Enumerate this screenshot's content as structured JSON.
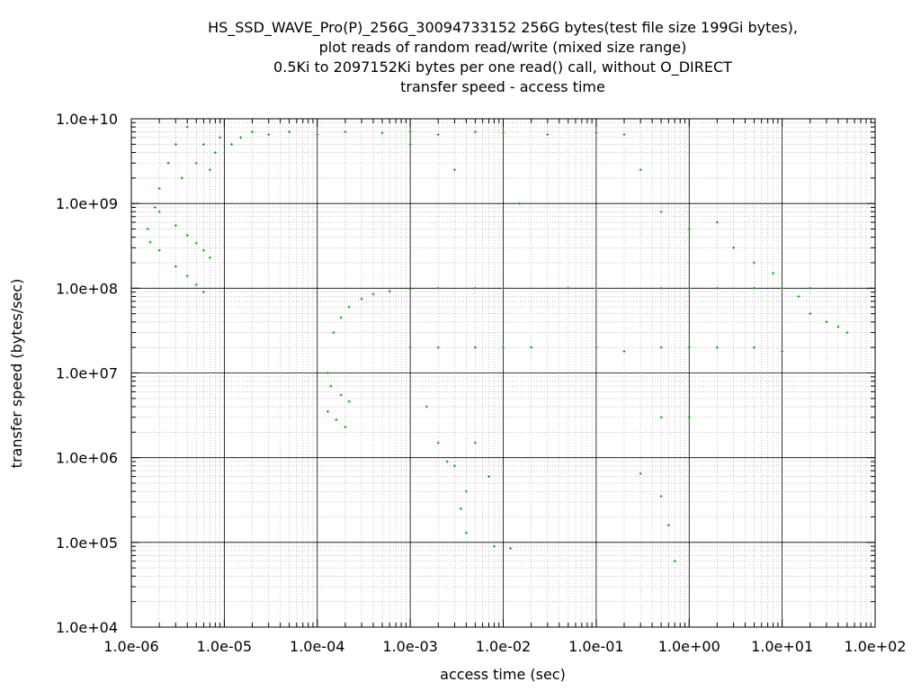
{
  "chart_data": {
    "type": "scatter",
    "title_lines": [
      "HS_SSD_WAVE_Pro(P)_256G_30094733152 256G bytes(test file size 199Gi bytes),",
      "plot reads of random read/write (mixed size range)",
      "0.5Ki to 2097152Ki bytes per one read() call, without O_DIRECT",
      "transfer speed - access time"
    ],
    "xlabel": "access time (sec)",
    "ylabel": "transfer speed (bytes/sec)",
    "x_scale": "log",
    "y_scale": "log",
    "xlim": [
      1e-06,
      100
    ],
    "ylim": [
      10000.0,
      10000000000.0
    ],
    "x_ticks": [
      "1.0e-06",
      "1.0e-05",
      "1.0e-04",
      "1.0e-03",
      "1.0e-02",
      "1.0e-01",
      "1.0e+00",
      "1.0e+01",
      "1.0e+02"
    ],
    "y_ticks": [
      "1.0e+04",
      "1.0e+05",
      "1.0e+06",
      "1.0e+07",
      "1.0e+08",
      "1.0e+09",
      "1.0e+10"
    ],
    "grid": "major and minor",
    "point_color": "#00aa00",
    "series": [
      {
        "points": [
          [
            1.5e-06,
            500000000.0
          ],
          [
            1.8e-06,
            900000000.0
          ],
          [
            2e-06,
            1500000000.0
          ],
          [
            2.5e-06,
            3000000000.0
          ],
          [
            3e-06,
            5000000000.0
          ],
          [
            3.5e-06,
            2000000000.0
          ],
          [
            4e-06,
            8000000000.0
          ],
          [
            5e-06,
            3000000000.0
          ],
          [
            6e-06,
            5000000000.0
          ],
          [
            7e-06,
            2500000000.0
          ],
          [
            8e-06,
            4000000000.0
          ],
          [
            9e-06,
            6000000000.0
          ],
          [
            1.2e-05,
            5000000000.0
          ],
          [
            1.5e-05,
            6000000000.0
          ],
          [
            2e-05,
            7000000000.0
          ],
          [
            3e-05,
            6500000000.0
          ],
          [
            5e-05,
            7000000000.0
          ],
          [
            0.0001,
            6500000000.0
          ],
          [
            0.0002,
            7000000000.0
          ],
          [
            0.0005,
            6800000000.0
          ],
          [
            0.001,
            7000000000.0
          ],
          [
            0.002,
            6500000000.0
          ],
          [
            0.005,
            7000000000.0
          ],
          [
            0.01,
            6800000000.0
          ],
          [
            0.03,
            6500000000.0
          ],
          [
            0.1,
            6800000000.0
          ],
          [
            0.2,
            6500000000.0
          ],
          [
            1.6e-06,
            350000000.0
          ],
          [
            2e-06,
            280000000.0
          ],
          [
            3e-06,
            180000000.0
          ],
          [
            4e-06,
            140000000.0
          ],
          [
            5e-06,
            110000000.0
          ],
          [
            6e-06,
            90000000.0
          ],
          [
            2e-06,
            800000000.0
          ],
          [
            3e-06,
            550000000.0
          ],
          [
            4e-06,
            420000000.0
          ],
          [
            5e-06,
            340000000.0
          ],
          [
            6e-06,
            280000000.0
          ],
          [
            7e-06,
            230000000.0
          ],
          [
            0.00013,
            10000000.0
          ],
          [
            0.00015,
            30000000.0
          ],
          [
            0.00018,
            45000000.0
          ],
          [
            0.00022,
            60000000.0
          ],
          [
            0.0003,
            75000000.0
          ],
          [
            0.0004,
            85000000.0
          ],
          [
            0.0006,
            92000000.0
          ],
          [
            0.001,
            98000000.0
          ],
          [
            0.002,
            100000000.0
          ],
          [
            0.005,
            100000000.0
          ],
          [
            0.01,
            100000000.0
          ],
          [
            0.05,
            100000000.0
          ],
          [
            0.1,
            100000000.0
          ],
          [
            0.5,
            100000000.0
          ],
          [
            1.0,
            100000000.0
          ],
          [
            2.0,
            100000000.0
          ],
          [
            5.0,
            100000000.0
          ],
          [
            10,
            100000000.0
          ],
          [
            20,
            100000000.0
          ],
          [
            0.00013,
            3500000.0
          ],
          [
            0.00016,
            2800000.0
          ],
          [
            0.0002,
            2300000.0
          ],
          [
            0.00014,
            7000000.0
          ],
          [
            0.00018,
            5500000.0
          ],
          [
            0.00022,
            4600000.0
          ],
          [
            0.001,
            20000000.0
          ],
          [
            0.002,
            20000000.0
          ],
          [
            0.005,
            20000000.0
          ],
          [
            0.01,
            20000000.0
          ],
          [
            0.02,
            20000000.0
          ],
          [
            0.1,
            20000000.0
          ],
          [
            0.2,
            18000000.0
          ],
          [
            0.5,
            20000000.0
          ],
          [
            1.0,
            20000000.0
          ],
          [
            2.0,
            20000000.0
          ],
          [
            5.0,
            20000000.0
          ],
          [
            10,
            18000000.0
          ],
          [
            0.0015,
            4000000.0
          ],
          [
            0.002,
            1500000.0
          ],
          [
            0.003,
            800000.0
          ],
          [
            0.004,
            400000.0
          ],
          [
            0.005,
            1500000.0
          ],
          [
            0.007,
            600000.0
          ],
          [
            0.0025,
            900000.0
          ],
          [
            0.0035,
            250000.0
          ],
          [
            0.004,
            130000.0
          ],
          [
            0.008,
            90000.0
          ],
          [
            0.012,
            85000.0
          ],
          [
            0.3,
            650000.0
          ],
          [
            0.5,
            350000.0
          ],
          [
            0.6,
            160000.0
          ],
          [
            0.7,
            60000.0
          ],
          [
            0.5,
            3000000.0
          ],
          [
            1.0,
            3000000.0
          ],
          [
            2.0,
            600000000.0
          ],
          [
            3.0,
            300000000.0
          ],
          [
            5.0,
            200000000.0
          ],
          [
            8.0,
            150000000.0
          ],
          [
            15,
            80000000.0
          ],
          [
            20,
            50000000.0
          ],
          [
            30,
            40000000.0
          ],
          [
            40,
            35000000.0
          ],
          [
            50,
            30000000.0
          ],
          [
            0.3,
            2500000000.0
          ],
          [
            0.5,
            800000000.0
          ],
          [
            1.0,
            500000000.0
          ],
          [
            0.015,
            1000000000.0
          ],
          [
            0.003,
            2500000000.0
          ],
          [
            0.001,
            5000000000.0
          ]
        ]
      }
    ]
  }
}
